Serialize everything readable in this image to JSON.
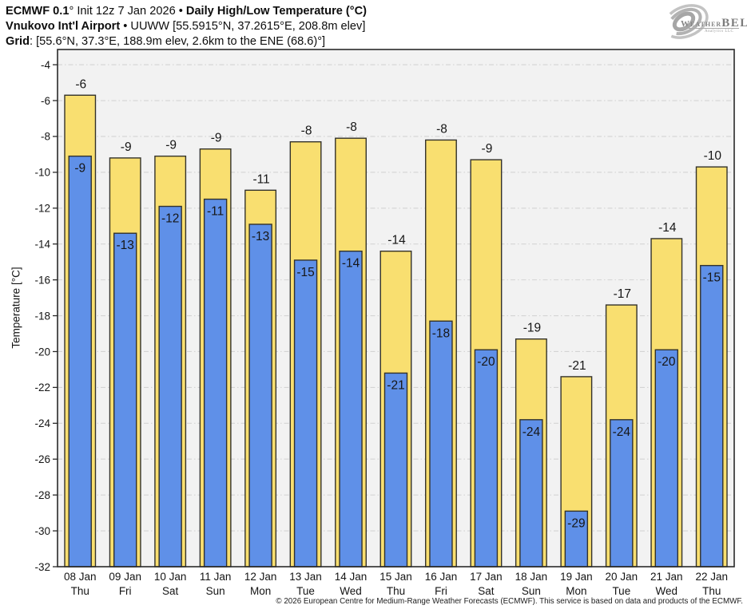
{
  "header": {
    "line1_bold": "ECMWF 0.1",
    "line1_regular": "° Init 12z 7 Jan 2026 • ",
    "line1_bold2": "Daily High/Low Temperature (°C)",
    "line2_bold": "Vnukovo Int'l Airport",
    "line2_regular": " • UUWW [55.5915°N, 37.2615°E, 208.8m elev]",
    "line3_bold": "Grid",
    "line3_regular": ": [55.6°N, 37.3°E, 188.9m elev, 2.6km to the ENE (68.6)°]"
  },
  "logo": {
    "brand_weather": "Weather",
    "brand_bell": "BELL",
    "subtitle": "Analytics LLC"
  },
  "footer": {
    "copyright": "© 2026 European Centre for Medium-Range Weather Forecasts (ECMWF). This service is based on data and products of the ECMWF."
  },
  "chart_data": {
    "type": "bar",
    "title": "ECMWF 0.1° Init 12z 7 Jan 2026 • Daily High/Low Temperature (°C)",
    "subtitle": "Vnukovo Int'l Airport • UUWW [55.5915°N, 37.2615°E, 208.8m elev]",
    "xlabel": "",
    "ylabel": "Temperature [°C]",
    "ylim": [
      -32,
      -3.15
    ],
    "yticks": [
      -4,
      -6,
      -8,
      -10,
      -12,
      -14,
      -16,
      -18,
      -20,
      -22,
      -24,
      -26,
      -28,
      -30,
      -32
    ],
    "grid": true,
    "legend": "none",
    "categories": [
      "08 Jan",
      "09 Jan",
      "10 Jan",
      "11 Jan",
      "12 Jan",
      "13 Jan",
      "14 Jan",
      "15 Jan",
      "16 Jan",
      "17 Jan",
      "18 Jan",
      "19 Jan",
      "20 Jan",
      "21 Jan",
      "22 Jan"
    ],
    "day_labels": [
      "Thu",
      "Fri",
      "Sat",
      "Sun",
      "Mon",
      "Tue",
      "Wed",
      "Thu",
      "Fri",
      "Sat",
      "Sun",
      "Mon",
      "Tue",
      "Wed",
      "Thu"
    ],
    "series": [
      {
        "name": "Daily High",
        "color": "#F9DF70",
        "values": [
          -5.7,
          -9.2,
          -9.1,
          -8.7,
          -11.0,
          -8.3,
          -8.1,
          -14.4,
          -8.2,
          -9.3,
          -19.3,
          -21.4,
          -17.4,
          -13.7,
          -9.7
        ],
        "labels": [
          "-6",
          "-9",
          "-9",
          "-9",
          "-11",
          "-8",
          "-8",
          "-14",
          "-8",
          "-9",
          "-19",
          "-21",
          "-17",
          "-14",
          "-10"
        ]
      },
      {
        "name": "Daily Low",
        "color": "#5F90E8",
        "values": [
          -9.1,
          -13.4,
          -11.9,
          -11.5,
          -12.9,
          -14.9,
          -14.4,
          -21.2,
          -18.3,
          -19.9,
          -23.8,
          -28.9,
          -23.8,
          -19.9,
          -15.2
        ],
        "labels": [
          "-9",
          "-13",
          "-12",
          "-11",
          "-13",
          "-15",
          "-14",
          "-21",
          "-18",
          "-20",
          "-24",
          "-29",
          "-24",
          "-20",
          "-15"
        ]
      }
    ],
    "colors": {
      "plot_bg": "#F2F2F2",
      "grid": "#D4D4D4",
      "axis": "#2A2A2A",
      "bar_border": "#33322B",
      "label_text": "#161616"
    }
  }
}
